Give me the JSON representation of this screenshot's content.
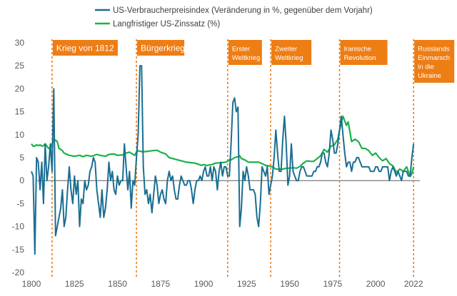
{
  "chart_data": {
    "type": "line",
    "title": "",
    "xlabel": "",
    "ylabel": "",
    "xlim": [
      1800,
      2024
    ],
    "ylim": [
      -20,
      30
    ],
    "y_ticks": [
      30,
      25,
      20,
      15,
      10,
      5,
      0,
      -5,
      -10,
      -15,
      -20
    ],
    "x_ticks": [
      1800,
      1825,
      1850,
      1875,
      1900,
      1925,
      1950,
      1975,
      2000,
      2022
    ],
    "legend": [
      "US-Verbraucherpreisindex (Veränderung in %, gegenüber dem Vorjahr)",
      "Langfristiger US-Zinssatz (%)"
    ],
    "legend_position": "top-center",
    "colors": {
      "cpi": "#1a6e92",
      "rate": "#19b24b",
      "event_line": "#e8750f",
      "event_box": "#ee7d14",
      "zero_line": "#404040"
    },
    "series": [
      {
        "name": "US-Verbraucherpreisindex (Veränderung in %, gegenüber dem Vorjahr)",
        "x": [
          1800,
          1801,
          1802,
          1803,
          1804,
          1805,
          1806,
          1807,
          1808,
          1809,
          1810,
          1811,
          1812,
          1813,
          1814,
          1815,
          1816,
          1817,
          1818,
          1819,
          1820,
          1821,
          1822,
          1823,
          1824,
          1825,
          1826,
          1827,
          1828,
          1829,
          1830,
          1831,
          1832,
          1833,
          1834,
          1835,
          1836,
          1837,
          1838,
          1839,
          1840,
          1841,
          1842,
          1843,
          1844,
          1845,
          1846,
          1847,
          1848,
          1849,
          1850,
          1851,
          1852,
          1853,
          1854,
          1855,
          1856,
          1857,
          1858,
          1859,
          1860,
          1861,
          1862,
          1863,
          1864,
          1865,
          1866,
          1867,
          1868,
          1869,
          1870,
          1871,
          1872,
          1873,
          1874,
          1875,
          1876,
          1877,
          1878,
          1879,
          1880,
          1881,
          1882,
          1883,
          1884,
          1885,
          1886,
          1887,
          1888,
          1889,
          1890,
          1891,
          1892,
          1893,
          1894,
          1895,
          1896,
          1897,
          1898,
          1899,
          1900,
          1901,
          1902,
          1903,
          1904,
          1905,
          1906,
          1907,
          1908,
          1909,
          1910,
          1911,
          1912,
          1913,
          1914,
          1915,
          1916,
          1917,
          1918,
          1919,
          1920,
          1921,
          1922,
          1923,
          1924,
          1925,
          1926,
          1927,
          1928,
          1929,
          1930,
          1931,
          1932,
          1933,
          1934,
          1935,
          1936,
          1937,
          1938,
          1939,
          1940,
          1941,
          1942,
          1943,
          1944,
          1945,
          1946,
          1947,
          1948,
          1949,
          1950,
          1951,
          1952,
          1953,
          1954,
          1955,
          1956,
          1957,
          1958,
          1959,
          1960,
          1961,
          1962,
          1963,
          1964,
          1965,
          1966,
          1967,
          1968,
          1969,
          1970,
          1971,
          1972,
          1973,
          1974,
          1975,
          1976,
          1977,
          1978,
          1979,
          1980,
          1981,
          1982,
          1983,
          1984,
          1985,
          1986,
          1987,
          1988,
          1989,
          1990,
          1991,
          1992,
          1993,
          1994,
          1995,
          1996,
          1997,
          1998,
          1999,
          2000,
          2001,
          2002,
          2003,
          2004,
          2005,
          2006,
          2007,
          2008,
          2009,
          2010,
          2011,
          2012,
          2013,
          2014,
          2015,
          2016,
          2017,
          2018,
          2019,
          2020,
          2021,
          2022
        ],
        "values": [
          2,
          1,
          -16,
          5,
          4,
          -2,
          4,
          -5,
          8,
          0,
          3,
          8,
          2,
          20,
          -12,
          -10,
          -8,
          -6,
          -2,
          -10,
          -8,
          -2,
          3,
          -2,
          -5,
          1,
          -3,
          0,
          -10,
          -4,
          -5,
          0,
          -2,
          -1,
          2,
          3,
          5,
          4,
          -2,
          -5,
          -8,
          -2,
          -8,
          -6,
          -2,
          4,
          0,
          2,
          -2,
          -3,
          1,
          -1,
          0,
          0,
          8,
          3,
          -2,
          2,
          -6,
          0,
          -1,
          5,
          10,
          25,
          25,
          3,
          -3,
          -2,
          -5,
          -3,
          -7,
          -3,
          1,
          -1,
          -5,
          -3,
          -2,
          -4,
          -5,
          0,
          2,
          0,
          1,
          -2,
          -4,
          -4,
          -1,
          1,
          0,
          -1,
          -1,
          0,
          0,
          -2,
          -5,
          -2,
          0,
          0,
          1,
          0,
          2,
          3,
          1,
          1,
          3,
          0,
          3,
          2,
          -2,
          2,
          4,
          1,
          3,
          3,
          1,
          1,
          8,
          17,
          18,
          15,
          16,
          -10,
          -6,
          2,
          0,
          3,
          1,
          -2,
          -2,
          -2,
          -3,
          -8,
          -10,
          -5,
          3,
          2,
          1,
          3,
          -3,
          -1,
          1,
          5,
          11,
          6,
          2,
          2,
          9,
          14,
          8,
          -1,
          1,
          8,
          2,
          1,
          0,
          0,
          2,
          3,
          3,
          2,
          1,
          1,
          1,
          1,
          2,
          2,
          3,
          3,
          4,
          6,
          6,
          4,
          3,
          6,
          11,
          9,
          6,
          6,
          8,
          11,
          14,
          10,
          6,
          3,
          4,
          4,
          2,
          4,
          4,
          5,
          5,
          4,
          3,
          3,
          3,
          3,
          3,
          2,
          2,
          2,
          3,
          3,
          2,
          2,
          3,
          3,
          3,
          3,
          0,
          2,
          3,
          2,
          1,
          2,
          1,
          0,
          2,
          2,
          2,
          1,
          1,
          5,
          8
        ],
        "note": "Values read approximately from gridlines"
      },
      {
        "name": "Langfristiger US-Zinssatz (%)",
        "x": [
          1800,
          1801,
          1802,
          1803,
          1804,
          1805,
          1806,
          1807,
          1808,
          1809,
          1810,
          1811,
          1812,
          1813,
          1814,
          1815,
          1816,
          1817,
          1818,
          1819,
          1820,
          1822,
          1825,
          1828,
          1830,
          1832,
          1835,
          1838,
          1840,
          1843,
          1845,
          1848,
          1850,
          1853,
          1855,
          1857,
          1860,
          1861,
          1862,
          1864,
          1866,
          1868,
          1870,
          1873,
          1875,
          1878,
          1880,
          1885,
          1890,
          1895,
          1899,
          1900,
          1902,
          1905,
          1907,
          1910,
          1913,
          1915,
          1916,
          1918,
          1920,
          1921,
          1922,
          1924,
          1926,
          1928,
          1930,
          1932,
          1934,
          1936,
          1938,
          1940,
          1942,
          1944,
          1946,
          1948,
          1950,
          1952,
          1954,
          1956,
          1958,
          1960,
          1962,
          1964,
          1966,
          1968,
          1970,
          1972,
          1974,
          1976,
          1978,
          1979,
          1980,
          1981,
          1982,
          1983,
          1984,
          1986,
          1988,
          1990,
          1992,
          1994,
          1996,
          1998,
          2000,
          2002,
          2004,
          2006,
          2008,
          2010,
          2012,
          2014,
          2016,
          2018,
          2019,
          2020,
          2021,
          2022
        ],
        "values": [
          8,
          7.5,
          7.5,
          7.8,
          7.6,
          7.8,
          7.5,
          7.6,
          8,
          7.5,
          7,
          7.2,
          8,
          8.8,
          8.8,
          8.5,
          7,
          6.8,
          6.5,
          6,
          5.8,
          5.5,
          5.3,
          5.5,
          5.2,
          5.5,
          5.3,
          5.7,
          5.5,
          5.3,
          5.7,
          5.8,
          5.5,
          5.6,
          6,
          6.2,
          5.5,
          6.2,
          6.5,
          6.3,
          6.3,
          6.4,
          6.5,
          6.6,
          6.2,
          5.8,
          5,
          4.5,
          4,
          3.8,
          3.3,
          3.5,
          3.3,
          3.5,
          3.8,
          3.9,
          4,
          4.5,
          4.5,
          5,
          5.2,
          5.4,
          4.8,
          4.5,
          4,
          4,
          4,
          4,
          3.7,
          3.3,
          3.2,
          3,
          2.5,
          2.5,
          2.5,
          2.7,
          2.7,
          2.8,
          2.7,
          3.1,
          3.8,
          4.3,
          4.2,
          4.2,
          4.8,
          5.4,
          6.8,
          6.2,
          7.5,
          7.8,
          9,
          11,
          12.5,
          14,
          13,
          12,
          12.8,
          8.5,
          9,
          8.5,
          7,
          7,
          6.5,
          5.5,
          6,
          5,
          4.3,
          4.8,
          3.7,
          3.2,
          1.8,
          2.5,
          2,
          3,
          2,
          0.9,
          1.5,
          3
        ]
      }
    ],
    "annotations": [
      {
        "year": 1812,
        "lines": [
          "Krieg von 1812"
        ],
        "font_size": 12
      },
      {
        "year": 1861,
        "lines": [
          "Bürgerkrieg"
        ],
        "font_size": 12
      },
      {
        "year": 1914,
        "lines": [
          "Erster",
          "Weltkrieg"
        ],
        "font_size": 9.5
      },
      {
        "year": 1939,
        "lines": [
          "Zweiter",
          "Weltkrieg"
        ],
        "font_size": 9.5
      },
      {
        "year": 1979,
        "lines": [
          "Iranische",
          "Revolution"
        ],
        "font_size": 9.5
      },
      {
        "year": 2022,
        "lines": [
          "Russlands",
          "Einmarsch",
          "in die",
          "Ukraine"
        ],
        "font_size": 9.5
      }
    ]
  }
}
